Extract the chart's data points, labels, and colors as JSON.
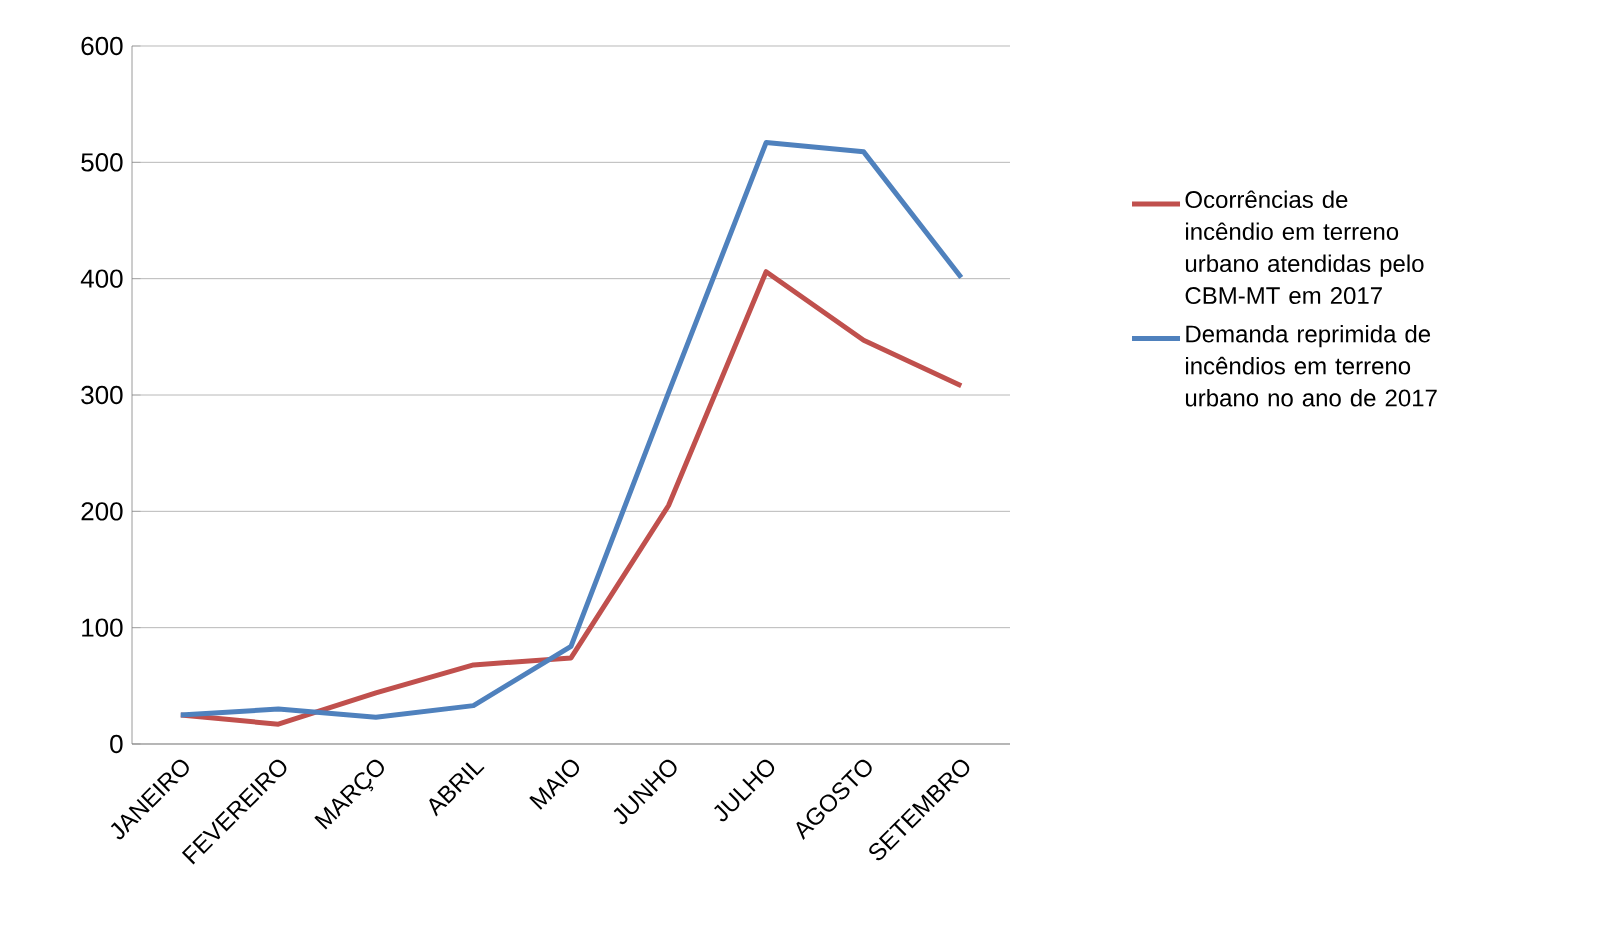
{
  "chart_data": {
    "type": "line",
    "categories": [
      "JANEIRO",
      "FEVEREIRO",
      "MARÇO",
      "ABRIL",
      "MAIO",
      "JUNHO",
      "JULHO",
      "AGOSTO",
      "SETEMBRO"
    ],
    "series": [
      {
        "name": "Ocorrências de incêndio em terreno urbano atendidas pelo CBM-MT em 2017",
        "color": "#c0504d",
        "values": [
          25,
          17,
          44,
          68,
          74,
          205,
          406,
          347,
          308
        ]
      },
      {
        "name": "Demanda reprimida de incêndios em terreno urbano no ano de 2017",
        "color": "#4f81bd",
        "values": [
          25,
          30,
          23,
          33,
          84,
          302,
          517,
          509,
          401
        ]
      }
    ],
    "ylim": [
      0,
      600
    ],
    "yticks": [
      0,
      100,
      200,
      300,
      400,
      500,
      600
    ],
    "grid": "y",
    "legend": "right",
    "marker": "none"
  }
}
